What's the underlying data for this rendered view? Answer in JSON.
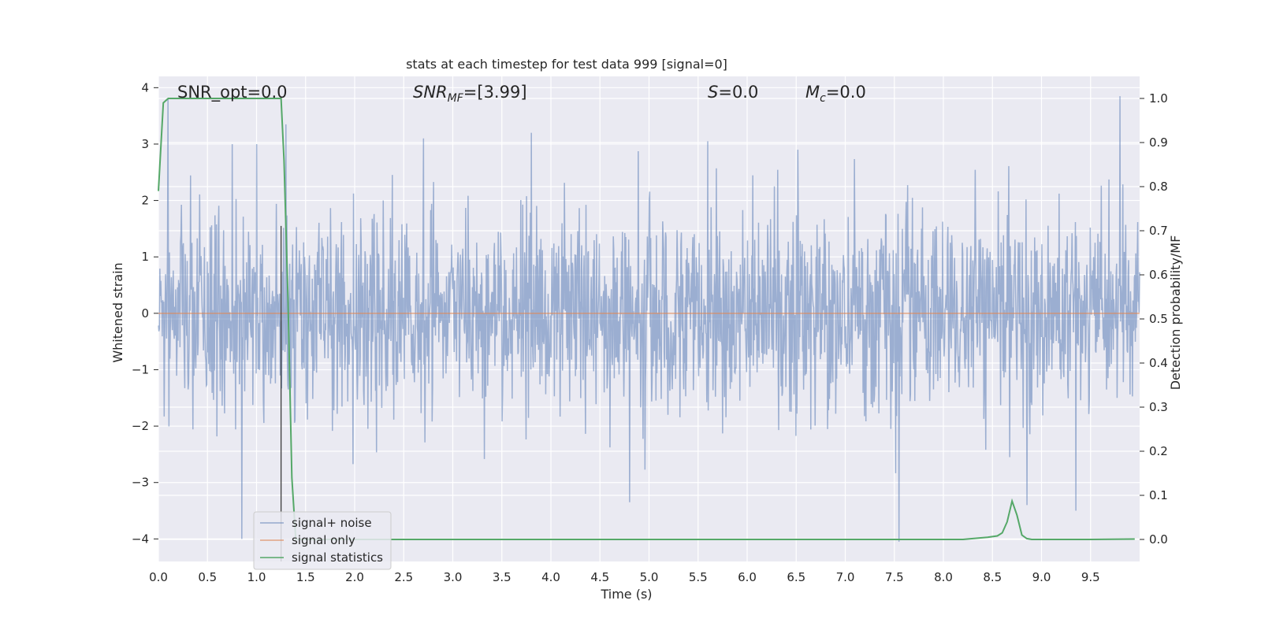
{
  "chart_data": {
    "type": "line",
    "title": "stats at each timestep for test data 999 [signal=0]",
    "xlabel": "Time (s)",
    "ylabel": "Whitened strain",
    "y2label": "Detection probability/MF",
    "xlim": [
      0,
      10
    ],
    "ylim": [
      -4.4,
      4.2
    ],
    "y2lim": [
      -0.05,
      1.05
    ],
    "xticks": [
      "0.0",
      "0.5",
      "1.0",
      "1.5",
      "2.0",
      "2.5",
      "3.0",
      "3.5",
      "4.0",
      "4.5",
      "5.0",
      "5.5",
      "6.0",
      "6.5",
      "7.0",
      "7.5",
      "8.0",
      "8.5",
      "9.0",
      "9.5"
    ],
    "yticks": [
      "4",
      "3",
      "2",
      "1",
      "0",
      "−1",
      "−2",
      "−3",
      "−4"
    ],
    "y2ticks": [
      "1.0",
      "0.9",
      "0.8",
      "0.7",
      "0.6",
      "0.5",
      "0.4",
      "0.3",
      "0.2",
      "0.1",
      "0.0"
    ],
    "grid": true,
    "legend_position": "lower-left",
    "annotations": {
      "snr_opt": "SNR_opt=0.0",
      "snr_mf_main": "SNR",
      "snr_mf_sub": "MF",
      "snr_mf_value": "=[3.99]",
      "s_main": "S",
      "s_value": "=0.0",
      "mc_main": "M",
      "mc_sub": "c",
      "mc_value": "=0.0"
    },
    "marker_line_x": 1.25,
    "series": [
      {
        "name": "signal+ noise",
        "color": "#4c72b0",
        "description": "whitened noise, roughly within ±2 with spikes to ±4",
        "notable_peaks": [
          {
            "x": 0.1,
            "y": 3.8
          },
          {
            "x": 0.75,
            "y": 3.0
          },
          {
            "x": 1.0,
            "y": 3.0
          },
          {
            "x": 1.3,
            "y": 3.35
          },
          {
            "x": 2.7,
            "y": 3.1
          },
          {
            "x": 3.8,
            "y": 3.2
          },
          {
            "x": 5.6,
            "y": 3.05
          },
          {
            "x": 9.8,
            "y": 3.85
          }
        ],
        "notable_troughs": [
          {
            "x": 0.85,
            "y": -4.0
          },
          {
            "x": 4.8,
            "y": -3.35
          },
          {
            "x": 7.55,
            "y": -4.05
          },
          {
            "x": 8.85,
            "y": -3.4
          },
          {
            "x": 9.35,
            "y": -3.5
          }
        ]
      },
      {
        "name": "signal only",
        "color": "#dd8452",
        "x": [
          0,
          10
        ],
        "y": [
          0,
          0
        ]
      },
      {
        "name": "signal statistics",
        "color": "#55a868",
        "axis": "right",
        "x": [
          0.0,
          0.05,
          0.1,
          0.2,
          1.0,
          1.25,
          1.28,
          1.32,
          1.36,
          1.4,
          1.45,
          2.0,
          3.0,
          5.0,
          7.0,
          8.0,
          8.2,
          8.3,
          8.45,
          8.55,
          8.6,
          8.65,
          8.7,
          8.75,
          8.8,
          8.85,
          8.9,
          9.0,
          9.5,
          9.95
        ],
        "y": [
          0.79,
          0.99,
          1.0,
          1.0,
          1.0,
          1.0,
          0.86,
          0.55,
          0.14,
          0.0,
          0.0,
          0.0,
          0.0,
          0.0,
          0.0,
          0.0,
          0.0,
          0.002,
          0.005,
          0.008,
          0.015,
          0.04,
          0.087,
          0.055,
          0.01,
          0.002,
          0.0,
          0.0,
          0.0,
          0.001
        ]
      }
    ]
  }
}
